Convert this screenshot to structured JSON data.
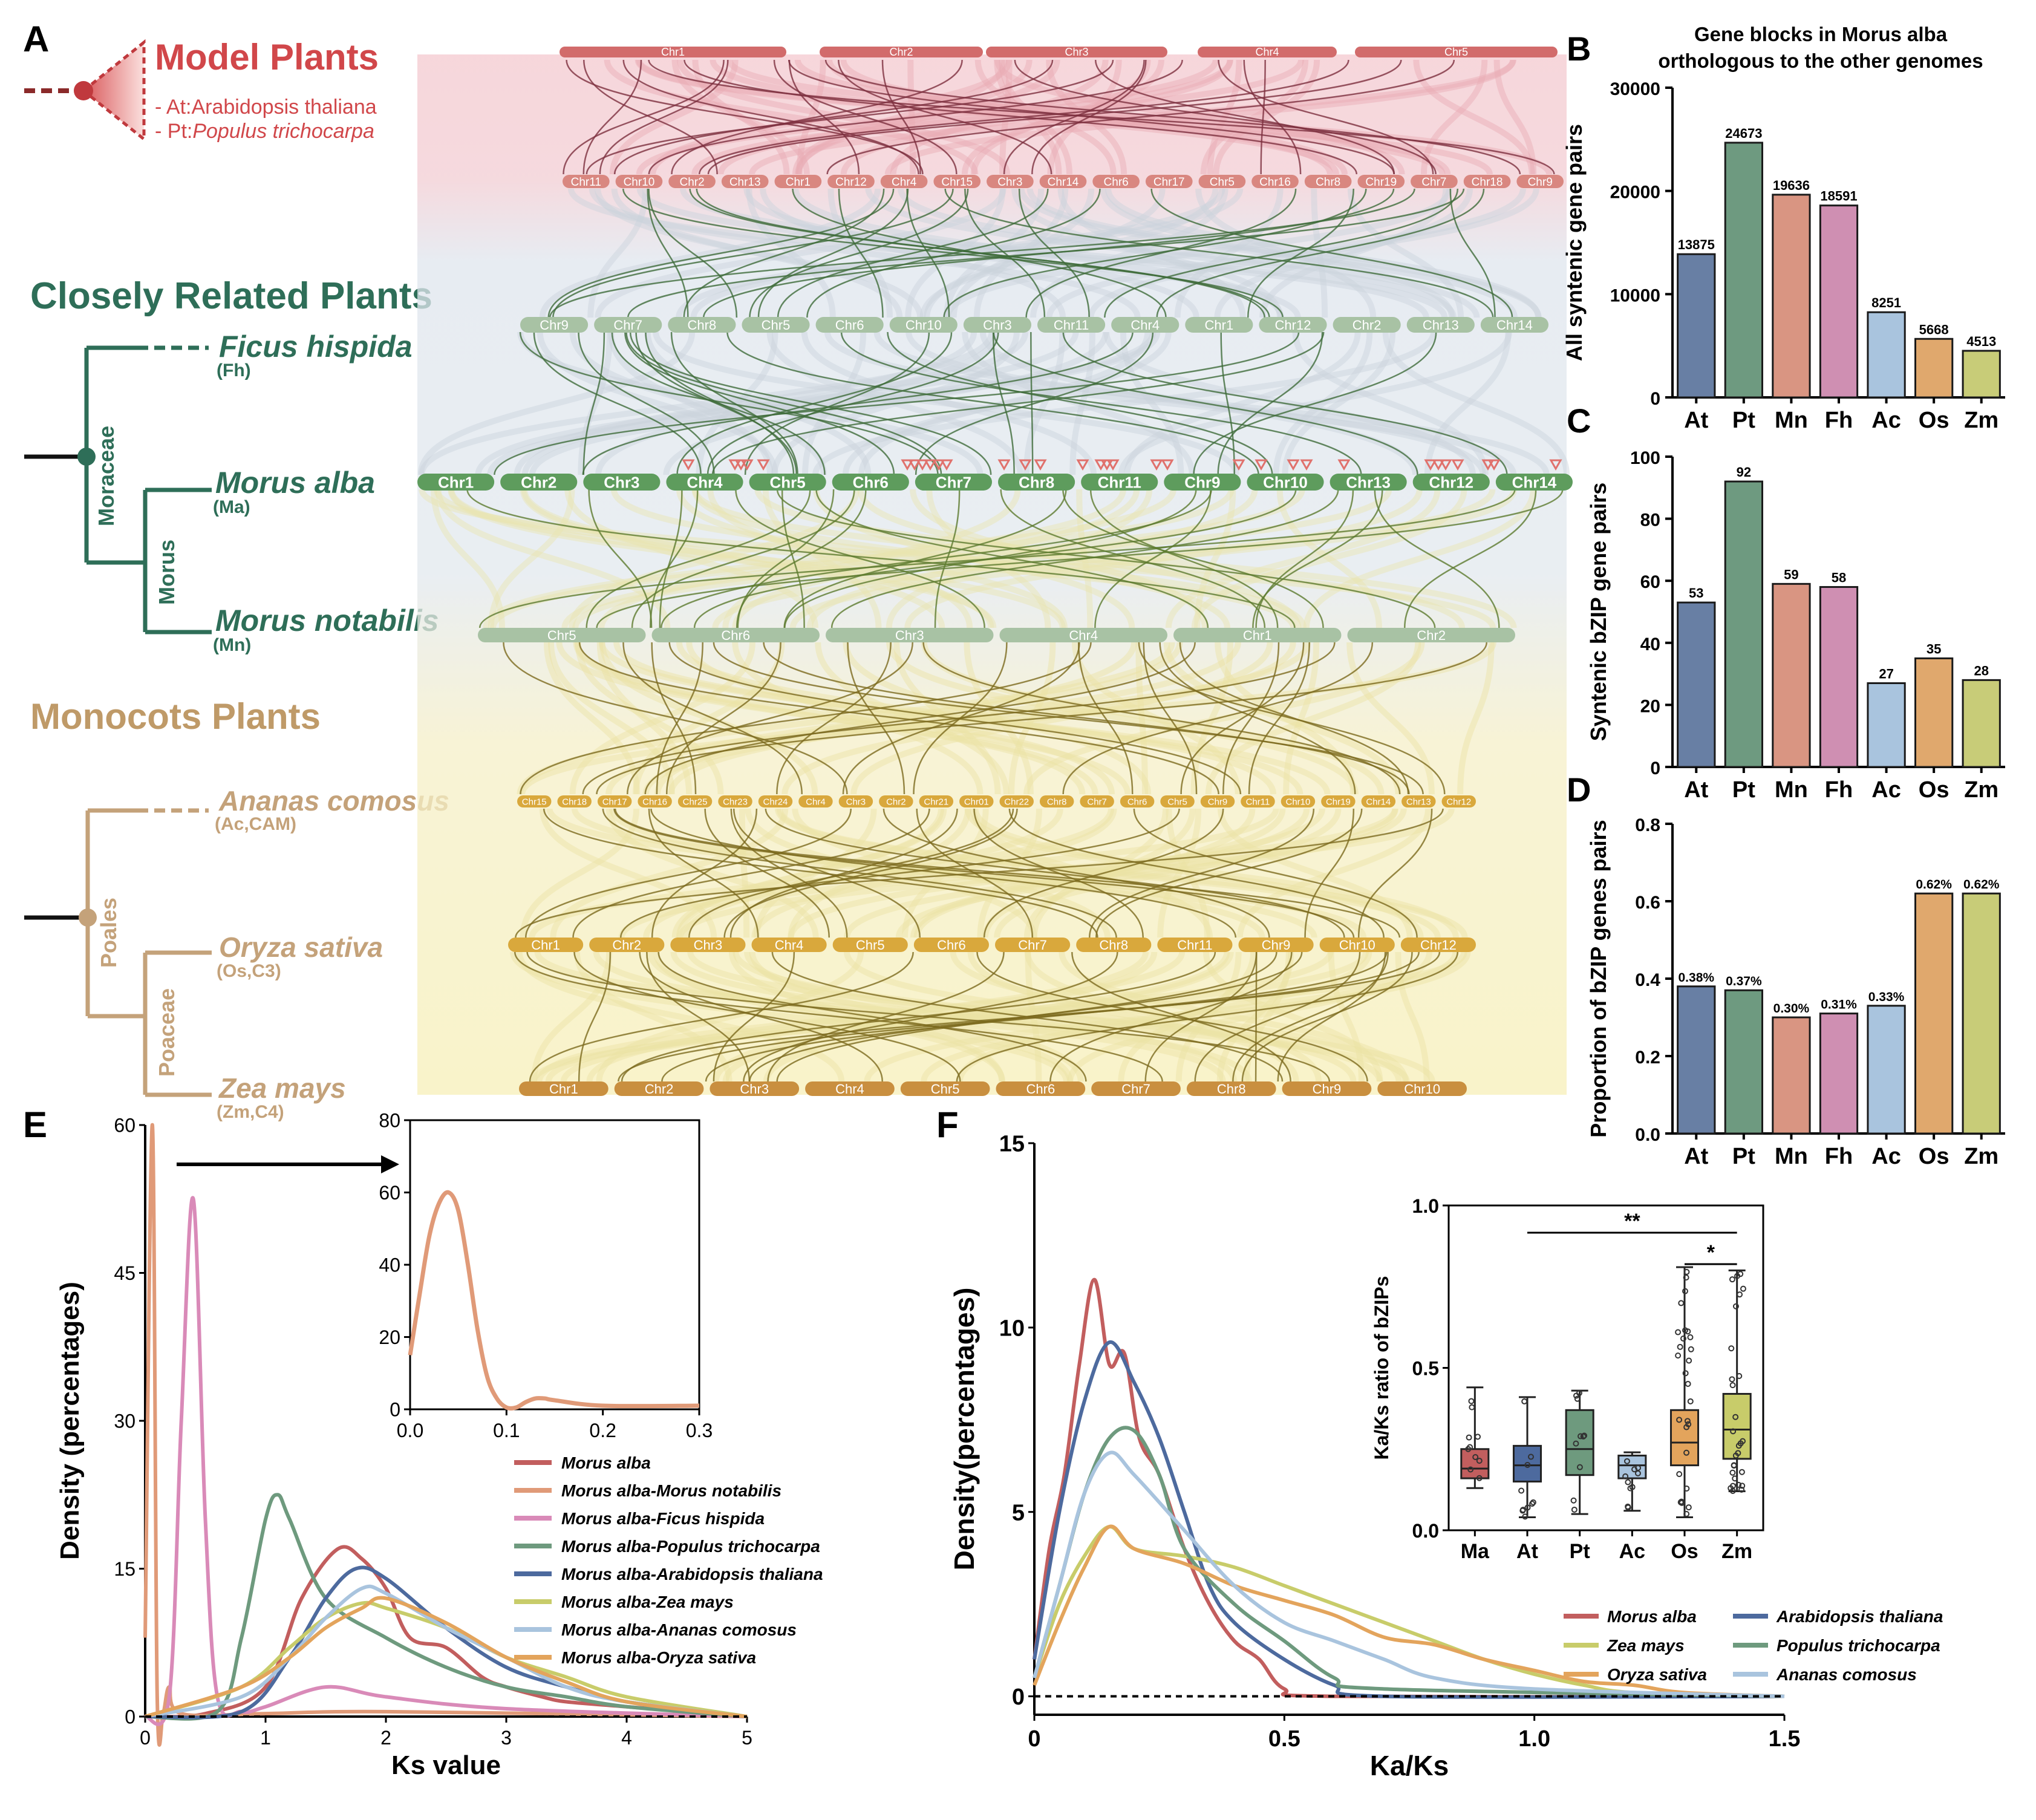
{
  "panel_labels": {
    "A": "A",
    "B": "B",
    "C": "C",
    "D": "D",
    "E": "E",
    "F": "F"
  },
  "tree": {
    "model_title": "Model Plants",
    "model_species": [
      {
        "prefix": "- At:",
        "name": "Arabidopsis thaliana"
      },
      {
        "prefix": "- Pt:",
        "name": "Populus trichocarpa"
      }
    ],
    "closely_title": "Closely Related Plants",
    "moraceae": "Moraceae",
    "morus_genus": "Morus",
    "ficus": {
      "name": "Ficus hispida",
      "abbr": "(Fh)"
    },
    "malba": {
      "name": "Morus alba",
      "abbr": "(Ma)"
    },
    "mnot": {
      "name": "Morus notabilis",
      "abbr": "(Mn)"
    },
    "monocots_title": "Monocots Plants",
    "poales": "Poales",
    "poaceae": "Poaceae",
    "ananas": {
      "name": "Ananas comosus",
      "abbr": "(Ac,CAM)"
    },
    "oryza": {
      "name": "Oryza sativa",
      "abbr": "(Os,C3)"
    },
    "zea": {
      "name": "Zea mays",
      "abbr": "(Zm,C4)"
    }
  },
  "synteny": {
    "tracks": [
      {
        "species": "Populus trichocarpa",
        "color": "#d98780",
        "labels": [
          "Chr11",
          "Chr10",
          "Chr2",
          "Chr13",
          "Chr1",
          "Chr12",
          "Chr4",
          "Chr15",
          "Chr3",
          "Chr14",
          "Chr6",
          "Chr17",
          "Chr5",
          "Chr16",
          "Chr8",
          "Chr19",
          "Chr7",
          "Chr18",
          "Chr9"
        ]
      },
      {
        "species": "Ficus hispida",
        "color": "#a8c2a4",
        "labels": [
          "Chr9",
          "Chr7",
          "Chr8",
          "Chr5",
          "Chr6",
          "Chr10",
          "Chr3",
          "Chr11",
          "Chr4",
          "Chr1",
          "Chr12",
          "Chr2",
          "Chr13",
          "Chr14"
        ]
      },
      {
        "species": "Morus alba",
        "color": "#5e9c5d",
        "labels": [
          "Chr1",
          "Chr2",
          "Chr3",
          "Chr4",
          "Chr5",
          "Chr6",
          "Chr7",
          "Chr8",
          "Chr11",
          "Chr9",
          "Chr10",
          "Chr13",
          "Chr12",
          "Chr14"
        ]
      },
      {
        "species": "Morus notabilis",
        "color": "#a8c2a4",
        "labels": [
          "Chr5",
          "Chr6",
          "Chr3",
          "Chr4",
          "Chr1",
          "Chr2"
        ]
      },
      {
        "species": "Ananas comosus",
        "color": "#d9a83c",
        "labels": [
          "Chr15",
          "Chr18",
          "Chr17",
          "Chr16",
          "Chr25",
          "Chr23",
          "Chr24",
          "Chr4",
          "Chr3",
          "Chr2",
          "Chr21",
          "Chr01",
          "Chr22",
          "Chr8",
          "Chr7",
          "Chr6",
          "Chr5",
          "Chr9",
          "Chr11",
          "Chr10",
          "Chr19",
          "Chr14",
          "Chr13",
          "Chr12"
        ]
      },
      {
        "species": "Oryza sativa",
        "color": "#d9a83c",
        "labels": [
          "Chr1",
          "Chr2",
          "Chr3",
          "Chr4",
          "Chr5",
          "Chr6",
          "Chr7",
          "Chr8",
          "Chr11",
          "Chr9",
          "Chr10",
          "Chr12"
        ]
      },
      {
        "species": "Zea mays",
        "color": "#c98f3f",
        "labels": [
          "Chr1",
          "Chr2",
          "Chr3",
          "Chr4",
          "Chr5",
          "Chr6",
          "Chr7",
          "Chr8",
          "Chr9",
          "Chr10"
        ]
      }
    ],
    "arabidopsis_track": {
      "color": "#d26b6b",
      "labels": [
        "Chr1",
        "Chr2",
        "Chr3",
        "Chr4",
        "Chr5"
      ]
    }
  },
  "chart_data": [
    {
      "id": "B",
      "type": "bar",
      "title": "Gene blocks in Morus alba orthologous to the other genomes",
      "ylabel": "All syntenic gene pairs",
      "xlabel": "",
      "categories": [
        "At",
        "Pt",
        "Mn",
        "Fh",
        "Ac",
        "Os",
        "Zm"
      ],
      "values": [
        13875,
        24673,
        19636,
        18591,
        8251,
        5668,
        4513
      ],
      "value_labels": [
        "13875",
        "24673",
        "19636",
        "18591",
        "8251",
        "5668",
        "4513"
      ],
      "ylim": [
        0,
        30000
      ],
      "yticks": [
        0,
        10000,
        20000,
        30000
      ]
    },
    {
      "id": "C",
      "type": "bar",
      "ylabel": "Syntenic bZIP gene pairs",
      "categories": [
        "At",
        "Pt",
        "Mn",
        "Fh",
        "Ac",
        "Os",
        "Zm"
      ],
      "values": [
        53,
        92,
        59,
        58,
        27,
        35,
        28
      ],
      "value_labels": [
        "53",
        "92",
        "59",
        "58",
        "27",
        "35",
        "28"
      ],
      "ylim": [
        0,
        100
      ],
      "yticks": [
        0,
        20,
        40,
        60,
        80,
        100
      ]
    },
    {
      "id": "D",
      "type": "bar",
      "ylabel": "Proportion of bZIP genes pairs",
      "categories": [
        "At",
        "Pt",
        "Mn",
        "Fh",
        "Ac",
        "Os",
        "Zm"
      ],
      "values": [
        0.38,
        0.37,
        0.3,
        0.31,
        0.33,
        0.62,
        0.62
      ],
      "value_labels": [
        "0.38%",
        "0.37%",
        "0.30%",
        "0.31%",
        "0.33%",
        "0.62%",
        "0.62%"
      ],
      "ylim": [
        0,
        0.8
      ],
      "yticks": [
        0.0,
        0.2,
        0.4,
        0.6,
        0.8
      ],
      "ytick_labels": [
        "0.0",
        "0.2",
        "0.4",
        "0.6",
        "0.8"
      ]
    },
    {
      "id": "E",
      "type": "line",
      "xlabel": "Ks value",
      "ylabel": "Density (percentages)",
      "xlim": [
        0,
        5
      ],
      "ylim": [
        0,
        60
      ],
      "xticks": [
        0,
        1,
        2,
        3,
        4,
        5
      ],
      "yticks": [
        0,
        15,
        30,
        45,
        60
      ],
      "series": [
        {
          "name": "Morus alba",
          "color": "#c25e5e",
          "x": [
            0,
            0.5,
            1.0,
            1.3,
            1.6,
            1.8,
            2.0,
            2.2,
            2.5,
            2.8,
            3.0,
            3.3,
            3.5,
            4.0,
            5.0
          ],
          "y": [
            0,
            0.3,
            3,
            12,
            17,
            16,
            13,
            8,
            7,
            4,
            3,
            2,
            1.5,
            1,
            0
          ]
        },
        {
          "name": "Morus alba-Morus notabilis",
          "color": "#e09a78",
          "x": [
            0,
            0.06,
            0.1,
            0.15,
            0.2,
            0.3,
            1.0,
            2.0,
            5.0
          ],
          "y": [
            8,
            60,
            2,
            0.5,
            3,
            0.3,
            0.3,
            0.5,
            0
          ]
        },
        {
          "name": "Morus alba-Ficus hispida",
          "color": "#d98ab8",
          "x": [
            0,
            0.2,
            0.3,
            0.4,
            0.5,
            0.6,
            0.8,
            1.0,
            1.5,
            2.0,
            3.0,
            5.0
          ],
          "y": [
            0,
            2,
            30,
            52.5,
            20,
            2,
            0.5,
            1,
            3,
            2,
            0.8,
            0
          ]
        },
        {
          "name": "Morus alba-Populus trichocarpa",
          "color": "#6e9a7e",
          "x": [
            0,
            0.6,
            0.8,
            1.0,
            1.1,
            1.2,
            1.5,
            2.0,
            2.5,
            3.0,
            3.5,
            4.0,
            5.0
          ],
          "y": [
            0,
            0.5,
            8,
            20,
            22.5,
            20,
            12,
            8,
            5,
            3,
            2,
            1,
            0
          ]
        },
        {
          "name": "Morus alba-Arabidopsis thaliana",
          "color": "#4d6a9e",
          "x": [
            0,
            0.8,
            1.2,
            1.5,
            1.75,
            2.0,
            2.5,
            3.0,
            3.5,
            4.0,
            5.0
          ],
          "y": [
            0,
            0.5,
            6,
            12,
            15,
            14,
            9,
            5,
            3,
            1.5,
            0
          ]
        },
        {
          "name": "Morus alba-Zea mays",
          "color": "#c8cc6a",
          "x": [
            0,
            0.8,
            1.2,
            1.5,
            1.8,
            2.0,
            2.5,
            3.0,
            3.5,
            4.0,
            5.0
          ],
          "y": [
            0,
            3,
            7,
            10,
            11.5,
            11,
            9,
            6,
            4,
            2,
            0
          ]
        },
        {
          "name": "Morus alba-Ananas comosus",
          "color": "#a9c4de",
          "x": [
            0,
            0.8,
            1.2,
            1.5,
            1.8,
            2.0,
            2.5,
            3.0,
            3.5,
            4.0,
            5.0
          ],
          "y": [
            0,
            2,
            6,
            10,
            13,
            12.5,
            9,
            6,
            3,
            1.5,
            0
          ]
        },
        {
          "name": "Morus alba-Oryza sativa",
          "color": "#e3a45c",
          "x": [
            0,
            0.8,
            1.2,
            1.5,
            1.8,
            2.0,
            2.5,
            3.0,
            3.5,
            4.0,
            5.0
          ],
          "y": [
            0,
            3,
            6,
            9,
            11,
            12,
            9.5,
            6,
            3.5,
            1.5,
            0
          ]
        }
      ],
      "inset": {
        "xlim": [
          0,
          0.3
        ],
        "ylim": [
          0,
          80
        ],
        "xticks": [
          0.0,
          0.1,
          0.2,
          0.3
        ],
        "xtick_labels": [
          "0.0",
          "0.1",
          "0.2",
          "0.3"
        ],
        "yticks": [
          0,
          20,
          40,
          60,
          80
        ],
        "series": [
          {
            "name": "Morus alba-Morus notabilis",
            "color": "#e09a78",
            "x": [
              0,
              0.01,
              0.02,
              0.03,
              0.04,
              0.05,
              0.06,
              0.07,
              0.08,
              0.09,
              0.1,
              0.11,
              0.12,
              0.13,
              0.14,
              0.15,
              0.2,
              0.3
            ],
            "y": [
              15,
              32,
              48,
              57,
              60,
              55,
              40,
              22,
              9,
              3,
              0.5,
              0.5,
              2,
              3,
              3,
              2.5,
              1,
              1
            ]
          }
        ]
      }
    },
    {
      "id": "F",
      "type": "line",
      "xlabel": "Ka/Ks",
      "ylabel": "Density(percentages)",
      "xlim": [
        0,
        1.5
      ],
      "ylim": [
        -0.5,
        15
      ],
      "xticks": [
        0,
        0.5,
        1.0,
        1.5
      ],
      "xtick_labels": [
        "0",
        "0.5",
        "1.0",
        "1.5"
      ],
      "yticks": [
        0,
        5,
        10,
        15
      ],
      "series": [
        {
          "name": "Morus alba",
          "color": "#c25e5e",
          "x": [
            0,
            0.03,
            0.06,
            0.09,
            0.12,
            0.15,
            0.18,
            0.21,
            0.25,
            0.3,
            0.35,
            0.4,
            0.45,
            0.5,
            0.6,
            1.5
          ],
          "y": [
            1,
            4,
            6,
            9,
            11.3,
            9,
            9.3,
            7,
            6,
            4,
            2.5,
            1.5,
            1,
            0.2,
            0,
            0
          ]
        },
        {
          "name": "Arabidopsis thaliana",
          "color": "#4d6a9e",
          "x": [
            0,
            0.05,
            0.1,
            0.15,
            0.2,
            0.25,
            0.3,
            0.35,
            0.4,
            0.5,
            0.6,
            0.7,
            1.5
          ],
          "y": [
            1,
            5,
            8,
            9.6,
            8.5,
            7,
            5,
            3,
            2,
            1,
            0.3,
            0,
            0
          ]
        },
        {
          "name": "Zea mays",
          "color": "#c8cc6a",
          "x": [
            0,
            0.05,
            0.1,
            0.15,
            0.2,
            0.3,
            0.4,
            0.5,
            0.6,
            0.7,
            0.8,
            0.9,
            1.0,
            1.1,
            1.2,
            1.5
          ],
          "y": [
            0.5,
            2.5,
            3.8,
            4.6,
            4,
            3.8,
            3.5,
            3,
            2.5,
            2,
            1.5,
            1,
            0.6,
            0.3,
            0.1,
            0
          ]
        },
        {
          "name": "Populus trichocarpa",
          "color": "#6e9a7e",
          "x": [
            0,
            0.05,
            0.1,
            0.15,
            0.2,
            0.25,
            0.3,
            0.4,
            0.5,
            0.6,
            0.7,
            1.5
          ],
          "y": [
            0.5,
            3,
            5.5,
            7,
            7.2,
            6,
            4,
            2.5,
            1.5,
            0.5,
            0.2,
            0
          ]
        },
        {
          "name": "Oryza sativa",
          "color": "#e3a45c",
          "x": [
            0,
            0.05,
            0.1,
            0.15,
            0.2,
            0.3,
            0.4,
            0.5,
            0.6,
            0.7,
            0.8,
            0.9,
            1.0,
            1.1,
            1.2,
            1.3,
            1.5
          ],
          "y": [
            0.3,
            2,
            3.5,
            4.6,
            4,
            3.6,
            3,
            2.6,
            2.2,
            1.6,
            1.4,
            1,
            0.7,
            0.4,
            0.3,
            0.1,
            0
          ]
        },
        {
          "name": "Ananas comosus",
          "color": "#a9c4de",
          "x": [
            0,
            0.05,
            0.1,
            0.15,
            0.2,
            0.3,
            0.4,
            0.5,
            0.6,
            0.7,
            0.8,
            1.0,
            1.5
          ],
          "y": [
            0.5,
            3,
            5.5,
            6.6,
            6,
            4.5,
            3,
            2,
            1.5,
            1,
            0.5,
            0.2,
            0
          ]
        }
      ],
      "inset": {
        "type": "box",
        "ylabel": "Ka/Ks ratio of bZIPs",
        "categories": [
          "Ma",
          "At",
          "Pt",
          "Ac",
          "Os",
          "Zm"
        ],
        "ylim": [
          0,
          1.0
        ],
        "yticks": [
          0.0,
          0.5,
          1.0
        ],
        "ytick_labels": [
          "0.0",
          "0.5",
          "1.0"
        ],
        "boxes": [
          {
            "cat": "Ma",
            "color": "#c25e5e",
            "min": 0.13,
            "q1": 0.16,
            "median": 0.19,
            "q3": 0.25,
            "max": 0.44
          },
          {
            "cat": "At",
            "color": "#4d6a9e",
            "min": 0.04,
            "q1": 0.15,
            "median": 0.2,
            "q3": 0.26,
            "max": 0.41
          },
          {
            "cat": "Pt",
            "color": "#6e9a7e",
            "min": 0.05,
            "q1": 0.17,
            "median": 0.25,
            "q3": 0.37,
            "max": 0.43
          },
          {
            "cat": "Ac",
            "color": "#a9c4de",
            "min": 0.06,
            "q1": 0.16,
            "median": 0.2,
            "q3": 0.23,
            "max": 0.24
          },
          {
            "cat": "Os",
            "color": "#e3a45c",
            "min": 0.04,
            "q1": 0.2,
            "median": 0.27,
            "q3": 0.37,
            "max": 0.81
          },
          {
            "cat": "Zm",
            "color": "#c8cc6a",
            "min": 0.12,
            "q1": 0.22,
            "median": 0.31,
            "q3": 0.42,
            "max": 0.8
          }
        ],
        "significance": [
          {
            "from": "At",
            "to": "Zm",
            "label": "**"
          },
          {
            "from": "Os",
            "to": "Zm",
            "label": "*"
          }
        ]
      }
    }
  ]
}
